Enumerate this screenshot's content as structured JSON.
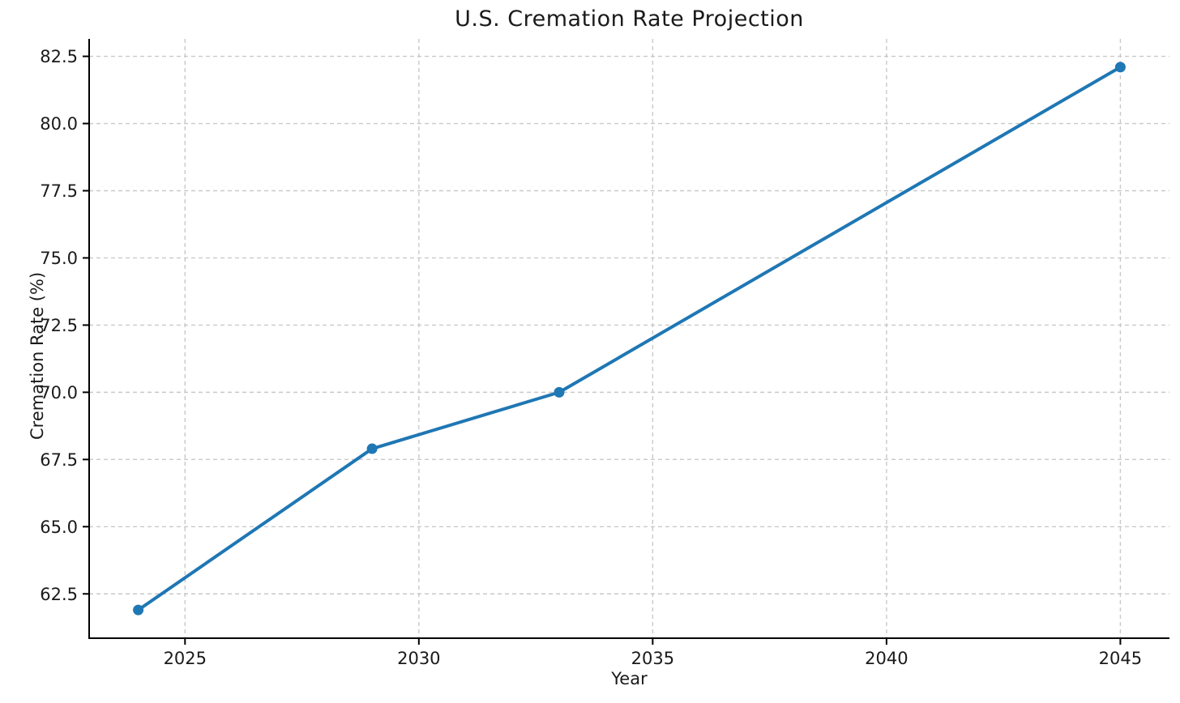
{
  "chart_data": {
    "type": "line",
    "title": "U.S. Cremation Rate Projection",
    "xlabel": "Year",
    "ylabel": "Cremation Rate (%)",
    "series": [
      {
        "name": "Cremation Rate",
        "x": [
          2024,
          2029,
          2033,
          2045
        ],
        "y": [
          61.9,
          67.9,
          70.0,
          82.1
        ]
      }
    ],
    "xlim": [
      2022.95,
      2046.05
    ],
    "ylim": [
      60.85,
      83.15
    ],
    "xticks": [
      2025,
      2030,
      2035,
      2040,
      2045
    ],
    "yticks": [
      62.5,
      65.0,
      67.5,
      70.0,
      72.5,
      75.0,
      77.5,
      80.0,
      82.5
    ],
    "ytick_decimals": 1,
    "grid": true,
    "grid_style": "dashed",
    "legend": "none",
    "marker": "circle",
    "colors": {
      "line": "#1f77b4",
      "marker": "#1f77b4",
      "grid": "#c9c9c9",
      "axis": "#000000",
      "text": "#1a1a1a",
      "background": "#ffffff"
    }
  }
}
